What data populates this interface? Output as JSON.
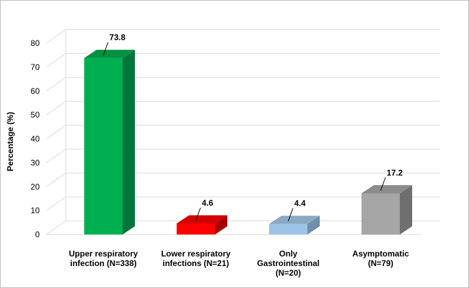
{
  "chart_data": {
    "type": "bar",
    "ylabel": "Percentage (%)",
    "ylim": [
      0,
      80
    ],
    "yticks": [
      "0",
      "10",
      "20",
      "30",
      "40",
      "50",
      "60",
      "70",
      "80"
    ],
    "grid": true,
    "legend": "none",
    "categories": [
      [
        "Upper respiratory",
        "infection (N=338)"
      ],
      [
        "Lower respiratory",
        "infections (N=21)"
      ],
      [
        "Only",
        "Gastrointestinal",
        "(N=20)"
      ],
      [
        "Asymptomatic",
        "(N=79)"
      ]
    ],
    "values": [
      73.8,
      4.6,
      4.4,
      17.2
    ],
    "value_labels": [
      "73.8",
      "4.6",
      "4.4",
      "17.2"
    ],
    "colors": {
      "bars_front": [
        "#00b050",
        "#ff0000",
        "#9dc3e6",
        "#a6a6a6"
      ],
      "bars_side": [
        "#00763a",
        "#a50000",
        "#6f8fab",
        "#6f6f6f"
      ],
      "bars_top": [
        "#009040",
        "#d20000",
        "#8aa9c4",
        "#8c8c8c"
      ],
      "grid": "#d9d9d9"
    }
  }
}
